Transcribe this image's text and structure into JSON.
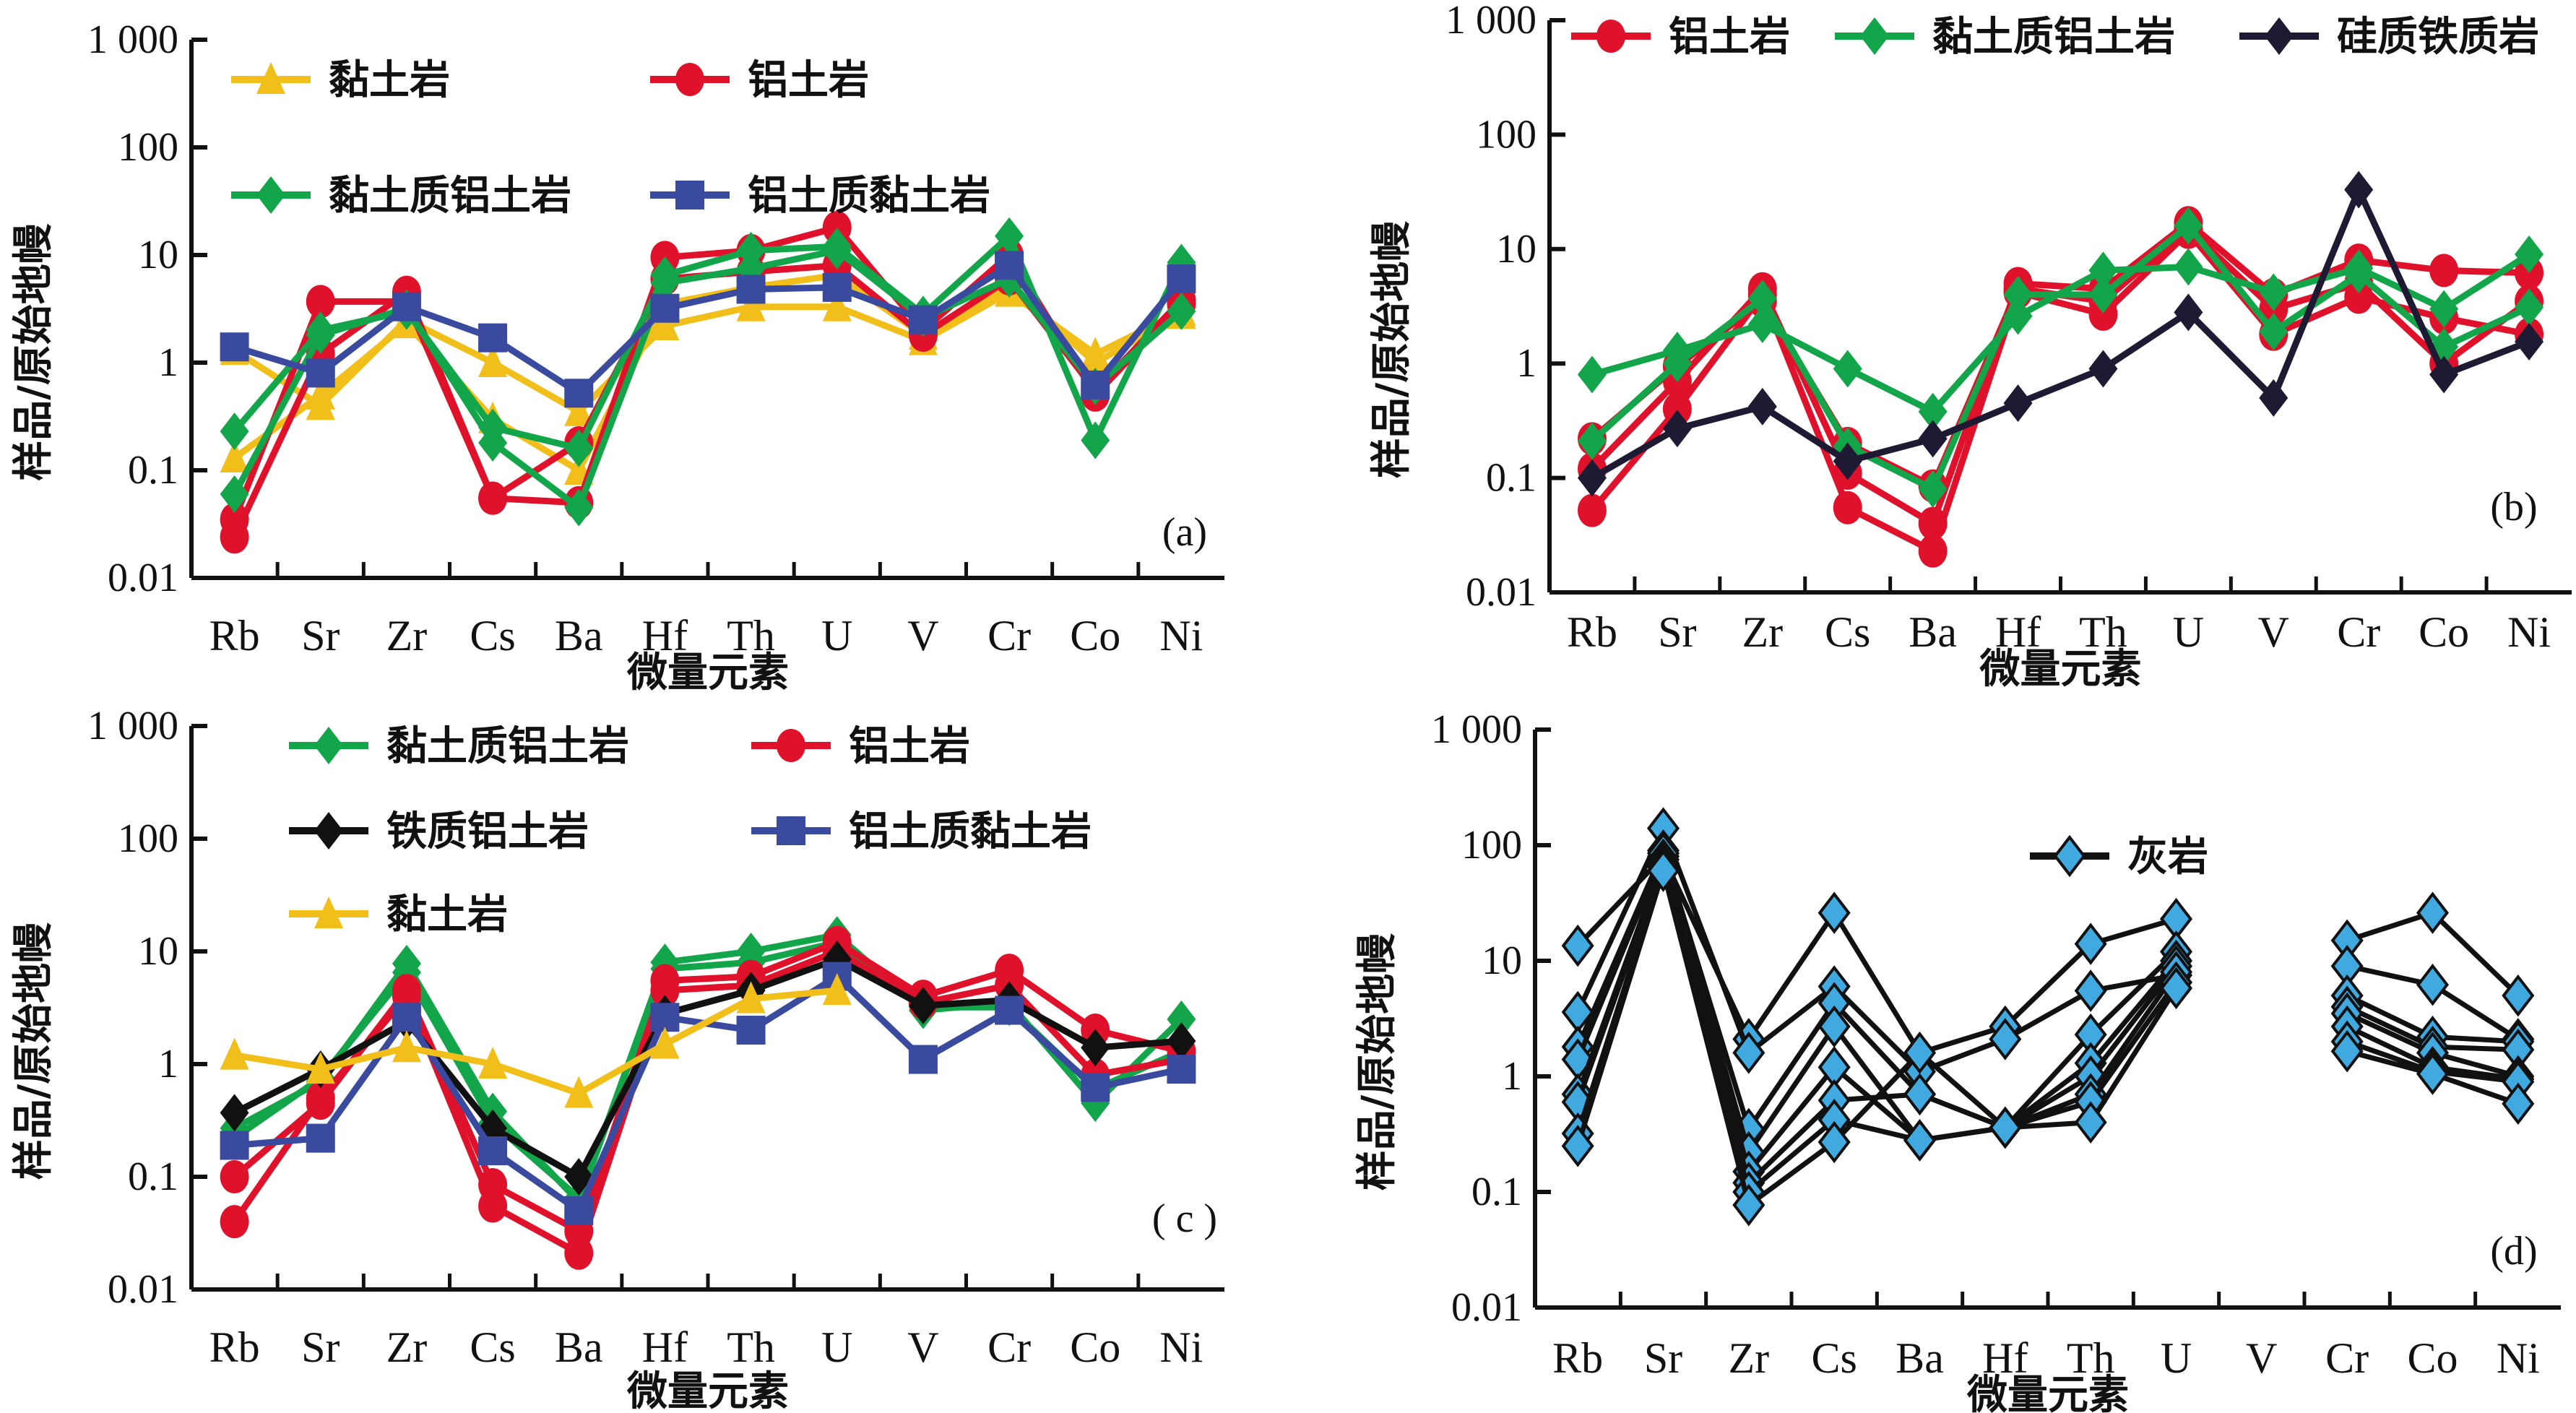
{
  "figure": {
    "y_axis_title": "样品/原始地幔",
    "x_axis_title": "微量元素"
  },
  "colors": {
    "clay": "#F2BE1A",
    "bauxite": "#E0112B",
    "clayey_bauxite": "#12A54A",
    "bauxitic_clay": "#3A4A9E",
    "ferruginous_bauxite": "#111111",
    "siliceous_ferruginous": "#1E1A33",
    "limestone": "#3FA9E0"
  },
  "chart_data": [
    {
      "id": "a",
      "type": "line",
      "panel_label": "(a)",
      "title": "",
      "xlabel": "微量元素",
      "ylabel": "样品/原始地幔",
      "yscale": "log",
      "ylim": [
        0.01,
        1000
      ],
      "yticks": [
        "0.01",
        "0.1",
        "1",
        "10",
        "100",
        "1 000"
      ],
      "categories": [
        "Rb",
        "Sr",
        "Zr",
        "Cs",
        "Ba",
        "Hf",
        "Th",
        "U",
        "V",
        "Cr",
        "Co",
        "Ni"
      ],
      "legend": {
        "placement": "top",
        "entries": [
          {
            "label": "黏土岩",
            "marker": "triangle",
            "color_key": "clay"
          },
          {
            "label": "铝土岩",
            "marker": "circle",
            "color_key": "bauxite"
          },
          {
            "label": "黏土质铝土岩",
            "marker": "diamond",
            "color_key": "clayey_bauxite"
          },
          {
            "label": "铝土质黏土岩",
            "marker": "square",
            "color_key": "bauxitic_clay"
          }
        ]
      },
      "series": [
        {
          "name": "黏土岩",
          "marker": "triangle",
          "color_key": "clay",
          "values": [
            1.3,
            0.4,
            2.5,
            1.0,
            0.35,
            2.2,
            3.3,
            3.3,
            1.6,
            4.5,
            1.2,
            3.0
          ]
        },
        {
          "name": "黏土岩",
          "marker": "triangle",
          "color_key": "clay",
          "values": [
            0.13,
            0.5,
            2.3,
            0.3,
            0.1,
            3.5,
            5.0,
            6.5,
            1.8,
            5.0,
            1.0,
            2.8
          ]
        },
        {
          "name": "铝土岩",
          "marker": "circle",
          "color_key": "bauxite",
          "values": [
            0.035,
            3.7,
            3.7,
            0.055,
            0.05,
            9.5,
            11,
            18,
            2.0,
            10,
            0.5,
            3.5
          ]
        },
        {
          "name": "铝土岩",
          "marker": "circle",
          "color_key": "bauxite",
          "values": [
            0.024,
            1.2,
            4.5,
            0.055,
            0.18,
            6.0,
            7.0,
            8.0,
            1.8,
            6.0,
            0.55,
            3.8
          ]
        },
        {
          "name": "黏土质铝土岩",
          "marker": "diamond",
          "color_key": "clayey_bauxite",
          "values": [
            0.23,
            2.0,
            3.0,
            0.25,
            0.16,
            6.5,
            11,
            12,
            2.8,
            15,
            0.19,
            8.5
          ]
        },
        {
          "name": "黏土质铝土岩",
          "marker": "diamond",
          "color_key": "clayey_bauxite",
          "values": [
            0.06,
            1.8,
            3.2,
            0.18,
            0.045,
            5.5,
            7.5,
            11,
            2.6,
            6.0,
            0.6,
            3.0
          ]
        },
        {
          "name": "铝土质黏土岩",
          "marker": "square",
          "color_key": "bauxitic_clay",
          "values": [
            1.4,
            0.8,
            3.3,
            1.7,
            0.52,
            3.2,
            4.8,
            5.0,
            2.5,
            8.0,
            0.62,
            6.0
          ]
        }
      ]
    },
    {
      "id": "b",
      "type": "line",
      "panel_label": "(b)",
      "title": "",
      "xlabel": "微量元素",
      "ylabel": "样品/原始地幔",
      "yscale": "log",
      "ylim": [
        0.01,
        1000
      ],
      "yticks": [
        "0.01",
        "0.1",
        "1",
        "10",
        "100",
        "1 000"
      ],
      "categories": [
        "Rb",
        "Sr",
        "Zr",
        "Cs",
        "Ba",
        "Hf",
        "Th",
        "U",
        "V",
        "Cr",
        "Co",
        "Ni"
      ],
      "legend": {
        "placement": "top",
        "entries": [
          {
            "label": "铝土岩",
            "marker": "circle",
            "color_key": "bauxite"
          },
          {
            "label": "黏土质铝土岩",
            "marker": "diamond",
            "color_key": "clayey_bauxite"
          },
          {
            "label": "硅质铁质岩",
            "marker": "diamond",
            "color_key": "siliceous_ferruginous"
          }
        ]
      },
      "series": [
        {
          "name": "铝土岩",
          "marker": "circle",
          "color_key": "bauxite",
          "values": [
            0.12,
            0.7,
            4.5,
            0.11,
            0.04,
            5.0,
            4.5,
            17,
            4.0,
            8.0,
            6.5,
            6.2
          ]
        },
        {
          "name": "铝土岩",
          "marker": "circle",
          "color_key": "bauxite",
          "values": [
            0.052,
            0.4,
            4.0,
            0.055,
            0.023,
            4.2,
            2.7,
            14,
            1.8,
            3.8,
            2.5,
            1.8
          ]
        },
        {
          "name": "铝土岩",
          "marker": "circle",
          "color_key": "bauxite",
          "values": [
            0.22,
            0.95,
            3.5,
            0.2,
            0.085,
            4.5,
            3.5,
            15,
            3.0,
            5.0,
            1.0,
            3.5
          ]
        },
        {
          "name": "黏土质铝土岩",
          "marker": "diamond",
          "color_key": "clayey_bauxite",
          "values": [
            0.8,
            1.3,
            2.2,
            0.9,
            0.38,
            2.6,
            6.5,
            7.0,
            4.2,
            6.8,
            3.0,
            9.0
          ]
        },
        {
          "name": "黏土质铝土岩",
          "marker": "diamond",
          "color_key": "clayey_bauxite",
          "values": [
            0.21,
            1.0,
            3.7,
            0.19,
            0.08,
            4.0,
            4.0,
            16,
            1.9,
            6.0,
            1.4,
            3.1
          ]
        },
        {
          "name": "硅质铁质岩",
          "marker": "diamond",
          "color_key": "siliceous_ferruginous",
          "values": [
            0.1,
            0.27,
            0.42,
            0.14,
            0.22,
            0.45,
            0.9,
            2.8,
            0.5,
            33,
            0.8,
            1.55
          ]
        }
      ]
    },
    {
      "id": "c",
      "type": "line",
      "panel_label": "( c )",
      "title": "",
      "xlabel": "微量元素",
      "ylabel": "样品/原始地幔",
      "yscale": "log",
      "ylim": [
        0.01,
        1000
      ],
      "yticks": [
        "0.01",
        "0.1",
        "1",
        "10",
        "100",
        "1 000"
      ],
      "categories": [
        "Rb",
        "Sr",
        "Zr",
        "Cs",
        "Ba",
        "Hf",
        "Th",
        "U",
        "V",
        "Cr",
        "Co",
        "Ni"
      ],
      "legend": {
        "placement": "top",
        "entries": [
          {
            "label": "黏土质铝土岩",
            "marker": "diamond",
            "color_key": "clayey_bauxite"
          },
          {
            "label": "铝土岩",
            "marker": "circle",
            "color_key": "bauxite"
          },
          {
            "label": "铁质铝土岩",
            "marker": "diamond",
            "color_key": "ferruginous_bauxite"
          },
          {
            "label": "铝土质黏土岩",
            "marker": "square",
            "color_key": "bauxitic_clay"
          },
          {
            "label": "黏土岩",
            "marker": "triangle",
            "color_key": "clay"
          }
        ]
      },
      "series": [
        {
          "name": "黏土质铝土岩",
          "marker": "diamond",
          "color_key": "clayey_bauxite",
          "values": [
            0.27,
            0.7,
            7.8,
            0.38,
            0.06,
            8.0,
            10,
            14,
            3.0,
            3.5,
            0.45,
            2.5
          ]
        },
        {
          "name": "黏土质铝土岩",
          "marker": "diamond",
          "color_key": "clayey_bauxite",
          "values": [
            0.22,
            0.75,
            6.5,
            0.3,
            0.065,
            7.0,
            8.0,
            12,
            3.2,
            3.2,
            0.6,
            1.3
          ]
        },
        {
          "name": "铝土岩",
          "marker": "circle",
          "color_key": "bauxite",
          "values": [
            0.1,
            0.45,
            4.5,
            0.085,
            0.033,
            5.5,
            6.0,
            12,
            4.0,
            6.8,
            2.0,
            1.3
          ]
        },
        {
          "name": "铝土岩",
          "marker": "circle",
          "color_key": "bauxite",
          "values": [
            0.04,
            0.5,
            4.0,
            0.055,
            0.021,
            4.5,
            5.0,
            10,
            3.5,
            5.0,
            0.8,
            1.1
          ]
        },
        {
          "name": "铁质铝土岩",
          "marker": "diamond",
          "color_key": "ferruginous_bauxite",
          "values": [
            0.37,
            0.9,
            2.4,
            0.27,
            0.1,
            2.8,
            4.5,
            8.5,
            3.3,
            3.7,
            1.4,
            1.6
          ]
        },
        {
          "name": "铝土质黏土岩",
          "marker": "square",
          "color_key": "bauxitic_clay",
          "values": [
            0.19,
            0.22,
            2.6,
            0.17,
            0.05,
            2.6,
            2.0,
            6.0,
            1.1,
            3.0,
            0.62,
            0.9
          ]
        },
        {
          "name": "黏土岩",
          "marker": "triangle",
          "color_key": "clay",
          "values": [
            1.2,
            0.9,
            1.4,
            1.0,
            0.55,
            1.5,
            3.8,
            4.5,
            null,
            null,
            null,
            null
          ]
        }
      ]
    },
    {
      "id": "d",
      "type": "line",
      "panel_label": "(d)",
      "title": "",
      "xlabel": "微量元素",
      "ylabel": "样品/原始地幔",
      "yscale": "log",
      "ylim": [
        0.01,
        1000
      ],
      "yticks": [
        "0.01",
        "0.1",
        "1",
        "10",
        "100",
        "1 000"
      ],
      "categories": [
        "Rb",
        "Sr",
        "Zr",
        "Cs",
        "Ba",
        "Hf",
        "Th",
        "U",
        "V",
        "Cr",
        "Co",
        "Ni"
      ],
      "legend": {
        "placement": "top-center",
        "entries": [
          {
            "label": "灰岩",
            "marker": "diamond",
            "color_key": "limestone"
          }
        ]
      },
      "series": [
        {
          "name": "灰岩",
          "marker": "diamond",
          "color_key": "limestone",
          "values": [
            13.5,
            80,
            2.1,
            26,
            1.6,
            2.7,
            14,
            23,
            null,
            15,
            26,
            5.0
          ]
        },
        {
          "name": "灰岩",
          "marker": "diamond",
          "color_key": "limestone",
          "values": [
            3.6,
            140,
            1.6,
            6.0,
            1.1,
            2.1,
            5.5,
            7.5,
            null,
            9.0,
            6.2,
            2.1
          ]
        },
        {
          "name": "灰岩",
          "marker": "diamond",
          "color_key": "limestone",
          "values": [
            1.8,
            90,
            0.35,
            4.3,
            0.7,
            0.36,
            2.3,
            12,
            null,
            5.0,
            2.2,
            2.0
          ]
        },
        {
          "name": "灰岩",
          "marker": "diamond",
          "color_key": "limestone",
          "values": [
            1.4,
            85,
            0.22,
            2.7,
            0.28,
            0.36,
            1.3,
            10,
            null,
            4.0,
            1.8,
            1.7
          ]
        },
        {
          "name": "灰岩",
          "marker": "diamond",
          "color_key": "limestone",
          "values": [
            0.7,
            75,
            0.15,
            1.2,
            0.28,
            0.36,
            1.0,
            9,
            null,
            3.5,
            1.6,
            1.0
          ]
        },
        {
          "name": "灰岩",
          "marker": "diamond",
          "color_key": "limestone",
          "values": [
            0.6,
            70,
            0.12,
            0.62,
            0.7,
            0.36,
            0.7,
            8,
            null,
            2.7,
            1.2,
            0.95
          ]
        },
        {
          "name": "灰岩",
          "marker": "diamond",
          "color_key": "limestone",
          "values": [
            0.32,
            65,
            0.1,
            0.42,
            0.28,
            0.36,
            0.6,
            6.5,
            null,
            2.0,
            1.1,
            0.9
          ]
        },
        {
          "name": "灰岩",
          "marker": "diamond",
          "color_key": "limestone",
          "values": [
            0.25,
            60,
            0.077,
            0.27,
            1.6,
            0.36,
            0.4,
            5.8,
            null,
            1.65,
            1.05,
            0.58
          ]
        }
      ]
    }
  ]
}
